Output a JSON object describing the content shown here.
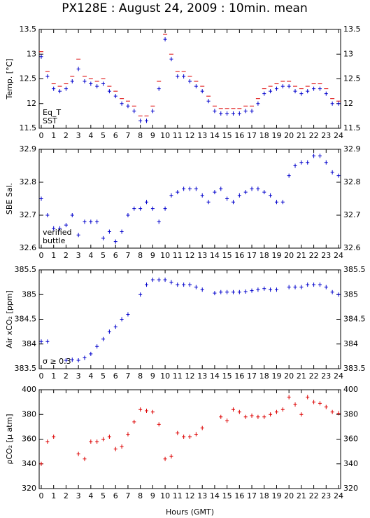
{
  "chart_data": [
    {
      "type": "scatter",
      "title": "PX128E : August 24, 2009 : 10min. mean",
      "ylabel": "Temp. [°C]",
      "x": [
        0,
        0.5,
        1,
        1.5,
        2,
        2.5,
        3,
        3.5,
        4,
        4.5,
        5,
        5.5,
        6,
        6.5,
        7,
        7.5,
        8,
        8.5,
        9,
        9.5,
        10,
        10.5,
        11,
        11.5,
        12,
        12.5,
        13,
        13.5,
        14,
        14.5,
        15,
        15.5,
        16,
        16.5,
        17,
        17.5,
        18,
        18.5,
        19,
        19.5,
        20,
        20.5,
        21,
        21.5,
        22,
        22.5,
        23,
        23.5,
        24
      ],
      "series": [
        {
          "name": "Eq_T",
          "color": "#dd0000",
          "marker": "dash",
          "values": [
            13.05,
            12.65,
            12.4,
            12.35,
            12.4,
            12.55,
            12.9,
            12.55,
            12.5,
            12.45,
            12.5,
            12.35,
            12.25,
            12.1,
            12.05,
            11.95,
            11.75,
            11.75,
            11.95,
            12.45,
            13.4,
            13.0,
            12.65,
            12.65,
            12.55,
            12.45,
            12.35,
            12.15,
            11.95,
            11.9,
            11.9,
            11.9,
            11.9,
            11.95,
            11.95,
            12.1,
            12.3,
            12.35,
            12.4,
            12.45,
            12.45,
            12.35,
            12.3,
            12.35,
            12.4,
            12.4,
            12.3,
            12.1,
            12.05
          ]
        },
        {
          "name": "SST",
          "color": "#0000cc",
          "marker": "plus",
          "values": [
            12.95,
            12.55,
            12.3,
            12.25,
            12.3,
            12.45,
            12.7,
            12.45,
            12.4,
            12.35,
            12.4,
            12.25,
            12.15,
            12.0,
            11.95,
            11.85,
            11.65,
            11.65,
            11.85,
            12.3,
            13.3,
            12.9,
            12.55,
            12.55,
            12.45,
            12.35,
            12.25,
            12.05,
            11.85,
            11.8,
            11.8,
            11.8,
            11.8,
            11.85,
            11.85,
            12.0,
            12.2,
            12.25,
            12.3,
            12.35,
            12.35,
            12.25,
            12.2,
            12.25,
            12.3,
            12.3,
            12.2,
            12.0,
            12.0
          ]
        }
      ],
      "xlim": [
        0,
        24
      ],
      "xticks": [
        0,
        1,
        2,
        3,
        4,
        5,
        6,
        7,
        8,
        9,
        10,
        11,
        12,
        13,
        14,
        15,
        16,
        17,
        18,
        19,
        20,
        21,
        22,
        23,
        24
      ],
      "ylim": [
        11.5,
        13.5
      ],
      "yticks": [
        11.5,
        12,
        12.5,
        13,
        13.5
      ]
    },
    {
      "type": "scatter",
      "ylabel": "SBE Sal.",
      "x": [
        0,
        0.5,
        1,
        1.5,
        2,
        2.5,
        3,
        3.5,
        4,
        4.5,
        5,
        5.5,
        6,
        6.5,
        7,
        7.5,
        8,
        8.5,
        9,
        9.5,
        10,
        10.5,
        11,
        11.5,
        12,
        12.5,
        13,
        13.5,
        14,
        14.5,
        15,
        15.5,
        16,
        16.5,
        17,
        17.5,
        18,
        18.5,
        19,
        19.5,
        20,
        20.5,
        21,
        21.5,
        22,
        22.5,
        23,
        23.5,
        24
      ],
      "series": [
        {
          "name": "verified",
          "color": "#0000cc",
          "marker": "plus",
          "values": [
            32.75,
            32.7,
            32.66,
            32.66,
            32.67,
            32.7,
            32.64,
            32.68,
            32.68,
            32.68,
            32.63,
            32.65,
            32.62,
            32.65,
            32.7,
            32.72,
            32.72,
            32.74,
            32.72,
            32.68,
            32.72,
            32.76,
            32.77,
            32.78,
            32.78,
            32.78,
            32.76,
            32.74,
            32.77,
            32.78,
            32.75,
            32.74,
            32.76,
            32.77,
            32.78,
            32.78,
            32.77,
            32.76,
            32.74,
            32.74,
            32.82,
            32.85,
            32.86,
            32.86,
            32.88,
            32.88,
            32.86,
            32.83,
            32.82
          ]
        }
      ],
      "annotations": [
        {
          "text": "buttle",
          "color": "#cc00cc"
        }
      ],
      "xlim": [
        0,
        24
      ],
      "xticks": [
        0,
        1,
        2,
        3,
        4,
        5,
        6,
        7,
        8,
        9,
        10,
        11,
        12,
        13,
        14,
        15,
        16,
        17,
        18,
        19,
        20,
        21,
        22,
        23,
        24
      ],
      "ylim": [
        32.6,
        32.9
      ],
      "yticks": [
        32.6,
        32.7,
        32.8,
        32.9
      ]
    },
    {
      "type": "scatter",
      "ylabel": "Air xCO₂ [ppm]",
      "x": [
        0,
        0.5,
        1,
        1.5,
        2,
        2.5,
        3,
        3.5,
        4,
        4.5,
        5,
        5.5,
        6,
        6.5,
        7,
        7.5,
        8,
        8.5,
        9,
        9.5,
        10,
        10.5,
        11,
        11.5,
        12,
        12.5,
        13,
        13.5,
        14,
        14.5,
        15,
        15.5,
        16,
        16.5,
        17,
        17.5,
        18,
        18.5,
        19,
        19.5,
        20,
        20.5,
        21,
        21.5,
        22,
        22.5,
        23,
        23.5,
        24
      ],
      "series": [
        {
          "color": "#0000cc",
          "marker": "plus",
          "values": [
            384.05,
            384.05,
            null,
            null,
            383.67,
            383.68,
            383.67,
            383.72,
            383.8,
            383.95,
            384.1,
            384.25,
            384.35,
            384.5,
            384.6,
            null,
            385.0,
            385.2,
            385.3,
            385.3,
            385.3,
            385.25,
            385.2,
            385.2,
            385.2,
            385.15,
            385.1,
            null,
            385.03,
            385.05,
            385.05,
            385.05,
            385.05,
            385.06,
            385.08,
            385.1,
            385.12,
            385.1,
            385.1,
            null,
            385.15,
            385.15,
            385.15,
            385.2,
            385.2,
            385.2,
            385.15,
            385.05,
            385.0
          ]
        }
      ],
      "annotations": [
        {
          "text": "σ ≥ 0.3",
          "color": "#cc00cc"
        }
      ],
      "xlim": [
        0,
        24
      ],
      "xticks": [
        0,
        1,
        2,
        3,
        4,
        5,
        6,
        7,
        8,
        9,
        10,
        11,
        12,
        13,
        14,
        15,
        16,
        17,
        18,
        19,
        20,
        21,
        22,
        23,
        24
      ],
      "ylim": [
        383.5,
        385.5
      ],
      "yticks": [
        383.5,
        384,
        384.5,
        385,
        385.5
      ]
    },
    {
      "type": "scatter",
      "ylabel": "ρCO₂ [μ atm]",
      "xlabel": "Hours (GMT)",
      "x": [
        0,
        0.5,
        1,
        1.5,
        2,
        2.5,
        3,
        3.5,
        4,
        4.5,
        5,
        5.5,
        6,
        6.5,
        7,
        7.5,
        8,
        8.5,
        9,
        9.5,
        10,
        10.5,
        11,
        11.5,
        12,
        12.5,
        13,
        13.5,
        14,
        14.5,
        15,
        15.5,
        16,
        16.5,
        17,
        17.5,
        18,
        18.5,
        19,
        19.5,
        20,
        20.5,
        21,
        21.5,
        22,
        22.5,
        23,
        23.5,
        24
      ],
      "series": [
        {
          "color": "#dd0000",
          "marker": "plus",
          "values": [
            340,
            358,
            362,
            null,
            null,
            null,
            348,
            344,
            358,
            358,
            360,
            362,
            352,
            354,
            364,
            374,
            384,
            383,
            382,
            372,
            344,
            346,
            365,
            362,
            362,
            364,
            369,
            null,
            null,
            378,
            375,
            384,
            382,
            378,
            379,
            378,
            378,
            380,
            382,
            384,
            394,
            388,
            380,
            394,
            390,
            389,
            386,
            382,
            381
          ]
        }
      ],
      "xlim": [
        0,
        24
      ],
      "xticks": [
        0,
        1,
        2,
        3,
        4,
        5,
        6,
        7,
        8,
        9,
        10,
        11,
        12,
        13,
        14,
        15,
        16,
        17,
        18,
        19,
        20,
        21,
        22,
        23,
        24
      ],
      "ylim": [
        320,
        400
      ],
      "yticks": [
        320,
        340,
        360,
        380,
        400
      ]
    }
  ]
}
